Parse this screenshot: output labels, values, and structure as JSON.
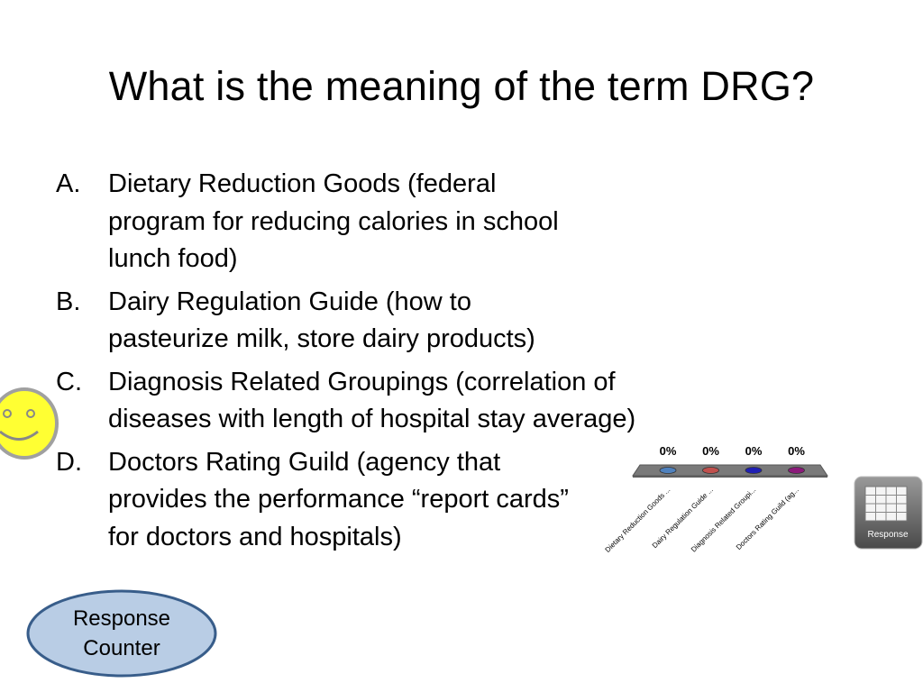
{
  "slide": {
    "title": "What is the meaning of the term DRG?",
    "options": [
      {
        "letter": "A.",
        "text": "Dietary Reduction Goods (federal program for reducing calories in school lunch food)"
      },
      {
        "letter": "B.",
        "text": "Dairy Regulation Guide (how to pasteurize milk, store dairy products)"
      },
      {
        "letter": "C.",
        "text": "Diagnosis Related Groupings (correlation of diseases with length of hospital stay average)"
      },
      {
        "letter": "D.",
        "text": "Doctors Rating Guild (agency that provides the performance “report cards” for doctors and hospitals)"
      }
    ],
    "response_counter": [
      "Response",
      "Counter"
    ],
    "response_button_label": "Response"
  },
  "chart_data": {
    "type": "bar",
    "categories": [
      "Dietary Reduction Goods ...",
      "Dairy Regulation Guide ...",
      "Diagnosis Related Groupi...",
      "Doctors Rating Guild (ag..."
    ],
    "values": [
      0,
      0,
      0,
      0
    ],
    "value_labels": [
      "0%",
      "0%",
      "0%",
      "0%"
    ],
    "colors": [
      "#4f81bd",
      "#c0504d",
      "#1f1fb4",
      "#8b1a7a"
    ],
    "title": "",
    "xlabel": "",
    "ylabel": "",
    "ylim": [
      0,
      100
    ]
  }
}
